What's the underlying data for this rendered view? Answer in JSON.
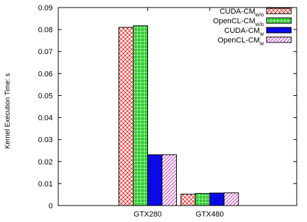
{
  "chart_data": {
    "type": "bar",
    "title": "",
    "xlabel": "",
    "ylabel": "Kernel Execution Time: s",
    "ylim": [
      0,
      0.09
    ],
    "yticks": [
      "0",
      "0.01",
      "0.02",
      "0.03",
      "0.04",
      "0.05",
      "0.06",
      "0.07",
      "0.08",
      "0.09"
    ],
    "categories": [
      "GTX280",
      "GTX480"
    ],
    "series": [
      {
        "name": "CUDA-CM",
        "sub": "w/o",
        "pattern": "crosshatch",
        "color": "#e83030",
        "values": [
          0.081,
          0.0052
        ]
      },
      {
        "name": "OpenCL-CM",
        "sub": "w/o",
        "pattern": "grid",
        "color": "#2ecc2e",
        "values": [
          0.0817,
          0.0055
        ]
      },
      {
        "name": "CUDA-CM",
        "sub": "w",
        "pattern": "solid",
        "color": "#0a0ae6",
        "values": [
          0.0231,
          0.0057
        ]
      },
      {
        "name": "OpenCL-CM",
        "sub": "w",
        "pattern": "diagonal",
        "color": "#cc33cc",
        "values": [
          0.0231,
          0.0058
        ]
      }
    ],
    "legend_position": "top-right",
    "grid": false
  }
}
